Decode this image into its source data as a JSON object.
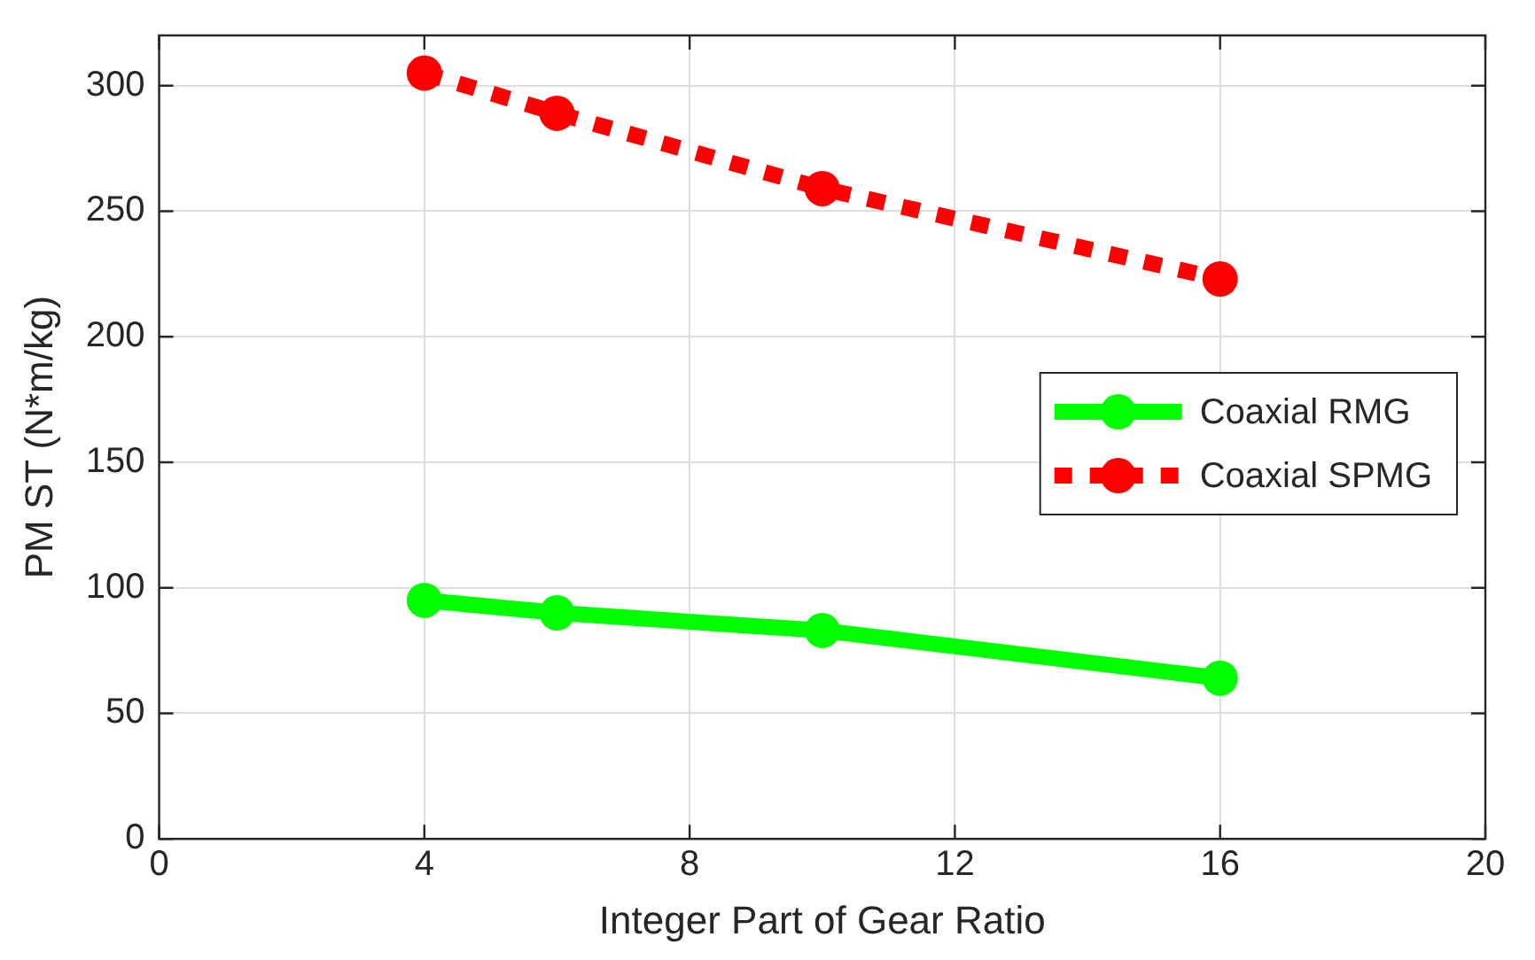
{
  "chart_data": {
    "type": "line",
    "xlabel": "Integer Part of Gear Ratio",
    "ylabel": "PM ST (N*m/kg)",
    "x": [
      4,
      6,
      10,
      16
    ],
    "series": [
      {
        "name": "Coaxial RMG",
        "color": "#00ff00",
        "values": [
          95,
          90,
          83,
          64
        ],
        "line_style": "solid"
      },
      {
        "name": "Coaxial SPMG",
        "color": "#ff0000",
        "values": [
          305,
          289,
          259,
          223
        ],
        "line_style": "dotted"
      }
    ],
    "xlim": [
      0,
      20
    ],
    "xticks": [
      0,
      4,
      8,
      12,
      16,
      20
    ],
    "ylim": [
      0,
      320
    ],
    "yticks": [
      0,
      50,
      100,
      150,
      200,
      250,
      300
    ],
    "grid": true,
    "legend": "right",
    "marker": "circle"
  }
}
